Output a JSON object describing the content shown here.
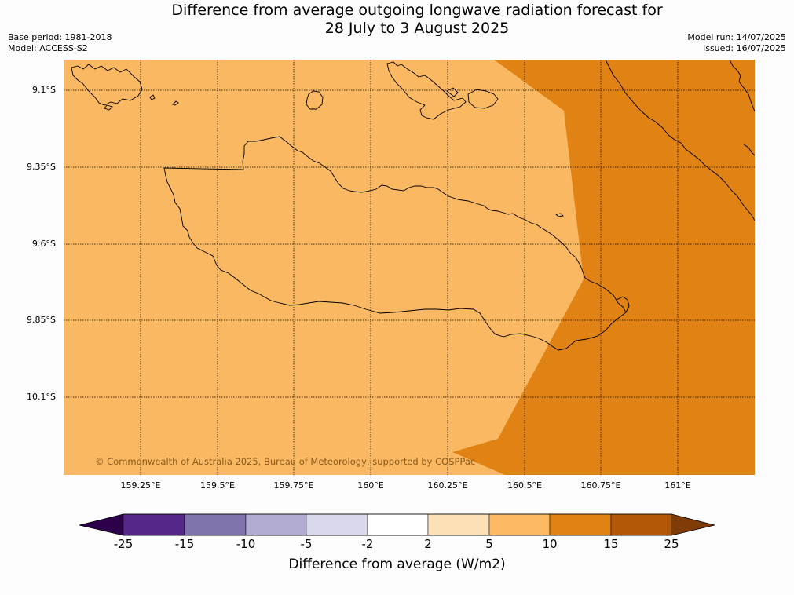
{
  "title_line1": "Difference from average outgoing longwave radiation forecast for",
  "title_line2": "28 July to 3 August 2025",
  "base_period": "Base period: 1981-2018",
  "model": "Model: ACCESS-S2",
  "model_run": "Model run: 14/07/2025",
  "issued": "Issued: 16/07/2025",
  "copyright": "© Commonwealth of Australia 2025, Bureau of Meteorology, supported by COSPPac",
  "lat_labels": [
    "9.1°S",
    "9.35°S",
    "9.6°S",
    "9.85°S",
    "10.1°S"
  ],
  "lon_labels": [
    "159.25°E",
    "159.5°E",
    "159.75°E",
    "160°E",
    "160.25°E",
    "160.5°E",
    "160.75°E",
    "161°E"
  ],
  "map_colors": {
    "band_5_10": "#fbb863",
    "band_10_15": "#e08214",
    "coastline": "#000000",
    "gridline": "#000000"
  },
  "colorbar": {
    "ticks": [
      "-25",
      "-15",
      "-10",
      "-5",
      "-2",
      "2",
      "5",
      "10",
      "15",
      "25"
    ],
    "colors": [
      "#2d004b",
      "#542788",
      "#8073ac",
      "#b2abd2",
      "#d8daeb",
      "#ffffff",
      "#fee0b6",
      "#fdb863",
      "#e08214",
      "#b35806",
      "#7f3b08"
    ],
    "label": "Difference from average (W/m2)"
  }
}
